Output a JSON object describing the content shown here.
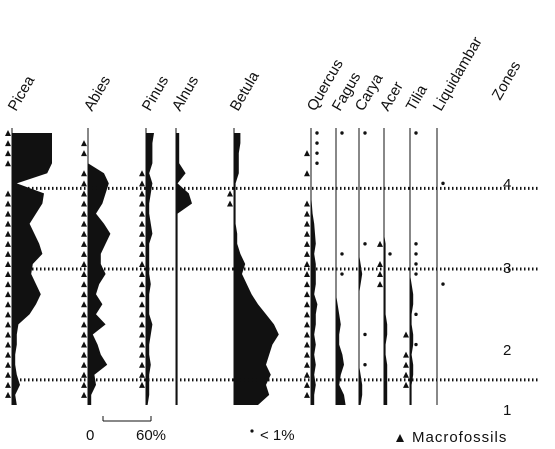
{
  "chart_data": {
    "type": "area",
    "title": "",
    "value_unit": "%",
    "scale_bar": {
      "min_label": "0",
      "max_label": "60%"
    },
    "legend": {
      "trace_text": "< 1%",
      "macrofossil_text": "Macrofossils"
    },
    "zones_header": "Zones",
    "zones": [
      {
        "label": "4"
      },
      {
        "label": "3"
      },
      {
        "label": "2"
      },
      {
        "label": "1"
      }
    ],
    "depth_samples": 28,
    "taxa": [
      {
        "name": "Picea",
        "values": [
          50,
          50,
          50,
          50,
          44,
          6,
          40,
          38,
          30,
          22,
          28,
          34,
          38,
          26,
          24,
          30,
          36,
          30,
          22,
          8,
          6,
          6,
          4,
          4,
          6,
          10,
          4,
          6
        ],
        "macrofossils": [
          0,
          1,
          2,
          3,
          6,
          7,
          8,
          9,
          10,
          11,
          12,
          13,
          14,
          15,
          16,
          17,
          18,
          19,
          20,
          21,
          22,
          23,
          24,
          25,
          26
        ]
      },
      {
        "name": "Abies",
        "values": [
          0,
          0,
          0,
          0,
          20,
          26,
          22,
          18,
          10,
          20,
          28,
          22,
          16,
          16,
          22,
          14,
          10,
          18,
          10,
          22,
          6,
          12,
          16,
          24,
          8,
          10,
          4,
          4
        ],
        "macrofossils": [
          1,
          2,
          4,
          5,
          6,
          7,
          8,
          9,
          10,
          11,
          12,
          13,
          14,
          15,
          16,
          17,
          18,
          19,
          20,
          21,
          22,
          23,
          24,
          25,
          26
        ]
      },
      {
        "name": "Pinus",
        "values": [
          10,
          8,
          8,
          8,
          4,
          8,
          6,
          4,
          4,
          6,
          8,
          4,
          4,
          4,
          4,
          6,
          4,
          4,
          4,
          8,
          6,
          4,
          4,
          6,
          4,
          4,
          4,
          2
        ],
        "macrofossils": [
          4,
          5,
          6,
          7,
          8,
          9,
          10,
          11,
          12,
          13,
          14,
          15,
          16,
          17,
          18,
          19,
          20,
          21,
          22,
          23,
          24,
          25
        ]
      },
      {
        "name": "Alnus",
        "values": [
          4,
          4,
          4,
          4,
          12,
          2,
          16,
          20,
          2,
          2,
          2,
          2,
          2,
          2,
          2,
          2,
          2,
          2,
          2,
          2,
          2,
          2,
          2,
          2,
          2,
          2,
          2,
          2
        ],
        "macrofossils": []
      },
      {
        "name": "Betula",
        "values": [
          8,
          8,
          6,
          6,
          6,
          2,
          2,
          2,
          2,
          2,
          4,
          4,
          8,
          14,
          10,
          16,
          22,
          30,
          40,
          50,
          56,
          48,
          44,
          40,
          46,
          40,
          44,
          30
        ],
        "macrofossils": [
          6,
          7
        ]
      },
      {
        "name": "Quercus",
        "values": [
          0,
          0,
          0,
          0,
          0,
          0,
          0,
          1,
          2,
          4,
          5,
          6,
          4,
          6,
          6,
          6,
          4,
          8,
          6,
          6,
          4,
          6,
          4,
          6,
          4,
          6,
          4,
          4
        ],
        "macrofossils": [
          2,
          4,
          7,
          8,
          9,
          10,
          11,
          12,
          13,
          14,
          15,
          16,
          17,
          18,
          19,
          20,
          21,
          22,
          23,
          24,
          25,
          26
        ],
        "traces": [
          0,
          1,
          2,
          3
        ]
      },
      {
        "name": "Fagus",
        "values": [
          0,
          0,
          0,
          0,
          0,
          0,
          0,
          0,
          0,
          0,
          0,
          0,
          0,
          0,
          0,
          0,
          0,
          2,
          4,
          6,
          4,
          4,
          8,
          10,
          6,
          4,
          10,
          12
        ],
        "macrofossils": [],
        "traces": [
          0,
          12,
          14
        ]
      },
      {
        "name": "Carya",
        "values": [
          0,
          0,
          0,
          0,
          0,
          0,
          0,
          0,
          0,
          0,
          0,
          0,
          0,
          2,
          4,
          2,
          0,
          0,
          0,
          0,
          0,
          0,
          0,
          0,
          2,
          4,
          4,
          2
        ],
        "macrofossils": [],
        "traces": [
          0,
          11,
          20,
          23
        ]
      },
      {
        "name": "Acer",
        "values": [
          0,
          0,
          0,
          0,
          0,
          0,
          0,
          0,
          0,
          0,
          0,
          2,
          2,
          2,
          2,
          2,
          2,
          2,
          2,
          4,
          4,
          2,
          2,
          4,
          4,
          4,
          4,
          4
        ],
        "macrofossils": [
          11,
          13,
          14,
          15
        ],
        "traces": [
          12
        ]
      },
      {
        "name": "Tilia",
        "values": [
          0,
          0,
          0,
          0,
          0,
          0,
          0,
          0,
          0,
          0,
          0,
          0,
          0,
          0,
          0,
          2,
          4,
          4,
          2,
          2,
          4,
          4,
          2,
          4,
          4,
          2,
          2,
          2
        ],
        "macrofossils": [
          20,
          22,
          23,
          24,
          25
        ],
        "traces": [
          0,
          11,
          12,
          13,
          14,
          18,
          21
        ]
      },
      {
        "name": "Liquidambar",
        "values": [
          0,
          0,
          0,
          0,
          0,
          0,
          0,
          0,
          0,
          0,
          0,
          0,
          0,
          0,
          0,
          0,
          0,
          0,
          0,
          0,
          0,
          0,
          0,
          0,
          0,
          0,
          0,
          0
        ],
        "macrofossils": [],
        "traces": [
          5,
          15
        ]
      }
    ]
  }
}
